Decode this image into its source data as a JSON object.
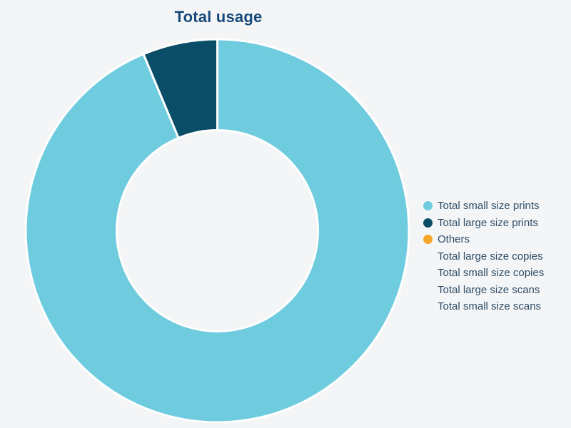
{
  "page": {
    "background_color": "#f4f5f6"
  },
  "chart": {
    "title": "Total usage",
    "title_color": "#174a7c",
    "legend_text_color": "#2e4d68",
    "separator_color": "#ffffff"
  },
  "chart_data": {
    "type": "pie",
    "subtype": "donut",
    "title": "Total usage",
    "categories": [
      "Total small size prints",
      "Total large size prints",
      "Others",
      "Total large size copies",
      "Total small size copies",
      "Total large size scans",
      "Total small size scans"
    ],
    "values": [
      93.7,
      6.3,
      0,
      0,
      0,
      0,
      0
    ],
    "value_unit": "percent (estimated from arc angles; no numeric labels shown)",
    "colors": [
      "#6fccdf",
      "#094d67",
      "#f7a62b",
      null,
      null,
      null,
      null
    ],
    "legend_position": "right",
    "start_angle_deg": 0,
    "direction": "clockwise",
    "inner_radius_ratio": 0.525,
    "grid": false
  }
}
